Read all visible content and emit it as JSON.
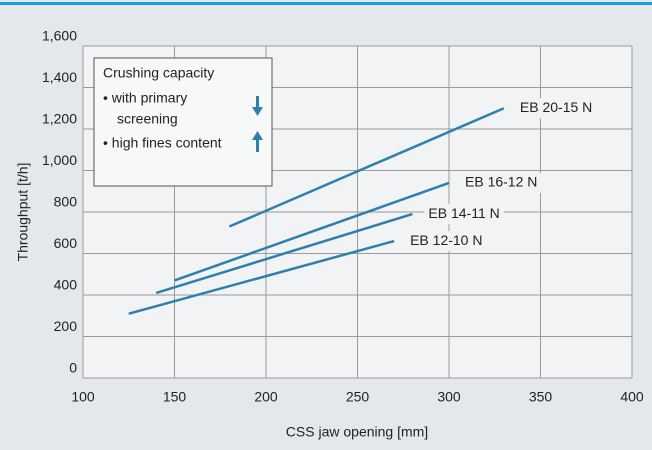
{
  "chart_data": {
    "type": "line",
    "x_label": "CSS jaw opening [mm]",
    "y_label": "Throughput [t/h]",
    "annotation": [
      "Crushing capacity",
      "• with primary",
      "screening",
      "• high fines content"
    ],
    "series": [
      {
        "name": "EB 20-15 N",
        "color": "#2f7fae",
        "x": [
          180,
          330
        ],
        "values": [
          730,
          1300
        ]
      },
      {
        "name": "EB 16-12 N",
        "color": "#2f7fae",
        "x": [
          150,
          300
        ],
        "values": [
          470,
          940
        ]
      },
      {
        "name": "EB 14-11 N",
        "color": "#2f7fae",
        "x": [
          140,
          280
        ],
        "values": [
          410,
          790
        ]
      },
      {
        "name": "EB 12-10 N",
        "color": "#2f7fae",
        "x": [
          125,
          270
        ],
        "values": [
          310,
          660
        ]
      }
    ],
    "xlim": [
      100,
      400
    ],
    "xticks": [
      100,
      150,
      200,
      250,
      300,
      350,
      400
    ],
    "ylim": [
      0,
      1600
    ],
    "yticks": [
      0,
      200,
      400,
      600,
      800,
      {
        "value": 1000,
        "label": "1,000"
      },
      {
        "value": 1200,
        "label": "1,200"
      },
      {
        "value": 1400,
        "label": "1,400"
      },
      {
        "value": 1600,
        "label": "1,600"
      }
    ],
    "grid": true
  }
}
